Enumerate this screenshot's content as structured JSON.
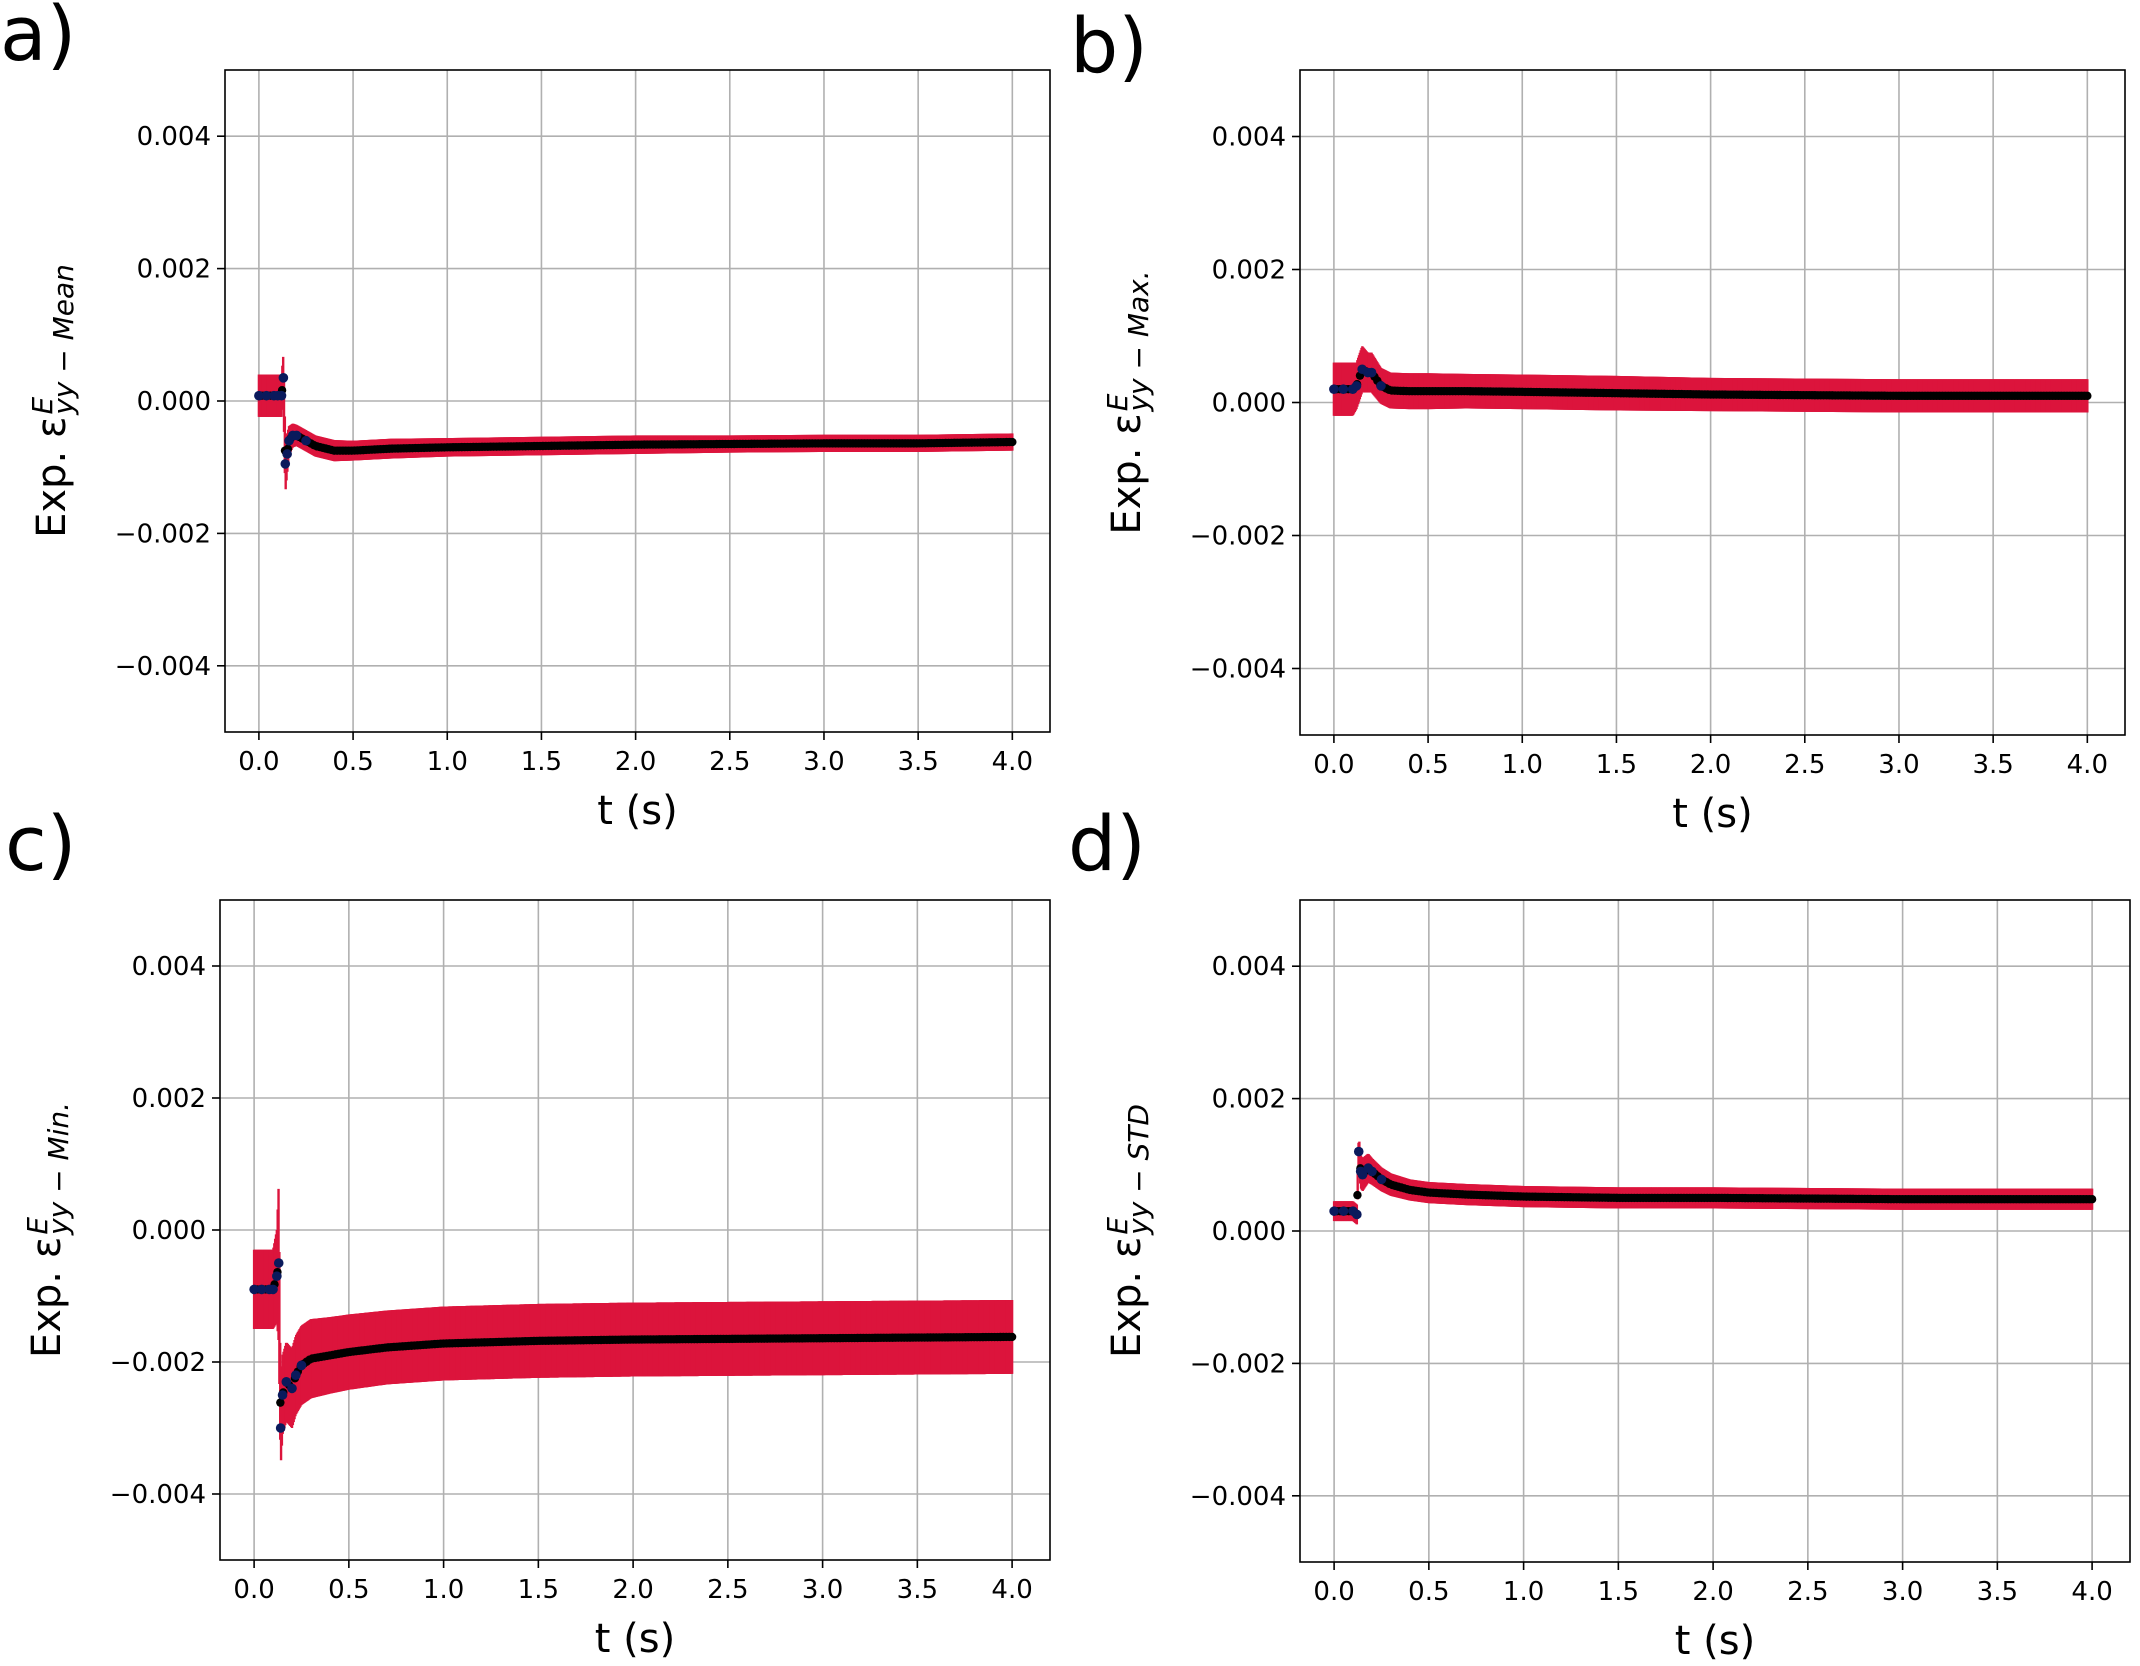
{
  "chart_data": [
    {
      "type": "scatter",
      "panel": "a)",
      "xlabel": "t (s)",
      "ylabel": {
        "prefix": "Exp. ε",
        "sup": "E",
        "sub": "yy − Mean"
      },
      "xlim": [
        -0.18,
        4.2
      ],
      "ylim": [
        -0.005,
        0.005
      ],
      "xticks": [
        "0.0",
        "0.5",
        "1.0",
        "1.5",
        "2.0",
        "2.5",
        "3.0",
        "3.5",
        "4.0"
      ],
      "yticks": [
        "0.004",
        "0.002",
        "0.000",
        "−0.002",
        "−0.004"
      ],
      "grid": true,
      "series": [
        {
          "kind": "mean",
          "x": [
            0.0,
            0.04,
            0.08,
            0.1,
            0.12,
            0.13,
            0.14,
            0.15,
            0.16,
            0.18,
            0.2,
            0.25,
            0.3,
            0.4,
            0.5,
            0.7,
            1.0,
            1.5,
            2.0,
            2.5,
            3.0,
            3.5,
            4.0
          ],
          "y": [
            8e-05,
            8e-05,
            8e-05,
            8e-05,
            8e-05,
            0.00035,
            -0.00095,
            -0.0008,
            -0.0006,
            -0.00052,
            -0.00052,
            -0.0006,
            -0.00068,
            -0.00075,
            -0.00075,
            -0.00072,
            -0.0007,
            -0.00068,
            -0.00066,
            -0.00065,
            -0.00064,
            -0.00064,
            -0.00062
          ],
          "err": [
            0.00032,
            0.00032,
            0.00032,
            0.00032,
            0.00032,
            0.00035,
            0.00045,
            0.0003,
            0.00022,
            0.00018,
            0.00016,
            0.00016,
            0.00016,
            0.00016,
            0.00015,
            0.00015,
            0.00014,
            0.00014,
            0.00014,
            0.00013,
            0.00013,
            0.00013,
            0.00013
          ]
        }
      ]
    },
    {
      "type": "scatter",
      "panel": "b)",
      "xlabel": "t (s)",
      "ylabel": {
        "prefix": "Exp. ε",
        "sup": "E",
        "sub": "yy − Max."
      },
      "xlim": [
        -0.18,
        4.2
      ],
      "ylim": [
        -0.005,
        0.005
      ],
      "xticks": [
        "0.0",
        "0.5",
        "1.0",
        "1.5",
        "2.0",
        "2.5",
        "3.0",
        "3.5",
        "4.0"
      ],
      "yticks": [
        "0.004",
        "0.002",
        "0.000",
        "−0.002",
        "−0.004"
      ],
      "grid": true,
      "series": [
        {
          "kind": "max",
          "x": [
            0.0,
            0.05,
            0.1,
            0.12,
            0.15,
            0.18,
            0.2,
            0.25,
            0.3,
            0.4,
            0.5,
            0.7,
            1.0,
            1.5,
            2.0,
            2.5,
            3.0,
            3.5,
            4.0
          ],
          "y": [
            0.0002,
            0.0002,
            0.0002,
            0.00025,
            0.0005,
            0.00045,
            0.00045,
            0.00025,
            0.00018,
            0.00017,
            0.00017,
            0.00017,
            0.00016,
            0.00014,
            0.00012,
            0.00011,
            0.0001,
            0.0001,
            0.0001
          ],
          "err": [
            0.0004,
            0.0004,
            0.0004,
            0.00035,
            0.00035,
            0.0003,
            0.0003,
            0.00027,
            0.00027,
            0.00027,
            0.00027,
            0.00026,
            0.00026,
            0.00026,
            0.00025,
            0.00025,
            0.00025,
            0.00025,
            0.00025
          ]
        }
      ]
    },
    {
      "type": "scatter",
      "panel": "c)",
      "xlabel": "t (s)",
      "ylabel": {
        "prefix": "Exp. ε",
        "sup": "E",
        "sub": "yy − Min."
      },
      "xlim": [
        -0.18,
        4.2
      ],
      "ylim": [
        -0.005,
        0.005
      ],
      "xticks": [
        "0.0",
        "0.5",
        "1.0",
        "1.5",
        "2.0",
        "2.5",
        "3.0",
        "3.5",
        "4.0"
      ],
      "yticks": [
        "0.004",
        "0.002",
        "0.000",
        "−0.002",
        "−0.004"
      ],
      "grid": true,
      "series": [
        {
          "kind": "min",
          "x": [
            0.0,
            0.04,
            0.08,
            0.1,
            0.12,
            0.13,
            0.14,
            0.15,
            0.17,
            0.2,
            0.22,
            0.25,
            0.3,
            0.4,
            0.5,
            0.7,
            1.0,
            1.5,
            2.0,
            2.5,
            3.0,
            3.5,
            4.0
          ],
          "y": [
            -0.0009,
            -0.0009,
            -0.0009,
            -0.0009,
            -0.0007,
            -0.0005,
            -0.003,
            -0.0025,
            -0.0023,
            -0.0024,
            -0.0022,
            -0.00205,
            -0.00195,
            -0.0019,
            -0.00185,
            -0.00178,
            -0.00172,
            -0.00168,
            -0.00166,
            -0.00165,
            -0.00164,
            -0.00163,
            -0.00162
          ],
          "err": [
            0.0006,
            0.0006,
            0.0006,
            0.0006,
            0.0007,
            0.0012,
            0.0006,
            0.0006,
            0.0006,
            0.0006,
            0.0006,
            0.0006,
            0.0006,
            0.00058,
            0.00057,
            0.00056,
            0.00056,
            0.00056,
            0.00056,
            0.00056,
            0.00056,
            0.00056,
            0.00056
          ]
        }
      ]
    },
    {
      "type": "scatter",
      "panel": "d)",
      "xlabel": "t (s)",
      "ylabel": {
        "prefix": "Exp. ε",
        "sup": "E",
        "sub": "yy − STD"
      },
      "xlim": [
        -0.18,
        4.2
      ],
      "ylim": [
        -0.005,
        0.005
      ],
      "xticks": [
        "0.0",
        "0.5",
        "1.0",
        "1.5",
        "2.0",
        "2.5",
        "3.0",
        "3.5",
        "4.0"
      ],
      "yticks": [
        "0.004",
        "0.002",
        "0.000",
        "−0.002",
        "−0.004"
      ],
      "grid": true,
      "series": [
        {
          "kind": "std",
          "x": [
            0.0,
            0.05,
            0.1,
            0.12,
            0.13,
            0.14,
            0.15,
            0.18,
            0.2,
            0.25,
            0.3,
            0.4,
            0.5,
            0.7,
            1.0,
            1.5,
            2.0,
            2.5,
            3.0,
            3.5,
            4.0
          ],
          "y": [
            0.0003,
            0.0003,
            0.0003,
            0.00025,
            0.0012,
            0.0009,
            0.00085,
            0.00095,
            0.0009,
            0.00078,
            0.0007,
            0.00062,
            0.00058,
            0.00055,
            0.00052,
            0.0005,
            0.0005,
            0.00049,
            0.00048,
            0.00048,
            0.00048
          ],
          "err": [
            0.00015,
            0.00015,
            0.00015,
            0.00015,
            0.00025,
            0.00025,
            0.00025,
            0.00022,
            0.0002,
            0.00018,
            0.00017,
            0.00016,
            0.00016,
            0.00016,
            0.00016,
            0.00016,
            0.00016,
            0.00016,
            0.00016,
            0.00016,
            0.00016
          ]
        }
      ]
    }
  ],
  "colors": {
    "error_band": "#dc143c",
    "mean_markers": "#000000",
    "early_markers": "#0a1a5c",
    "grid": "#b0b0b0",
    "frame": "#000000"
  }
}
